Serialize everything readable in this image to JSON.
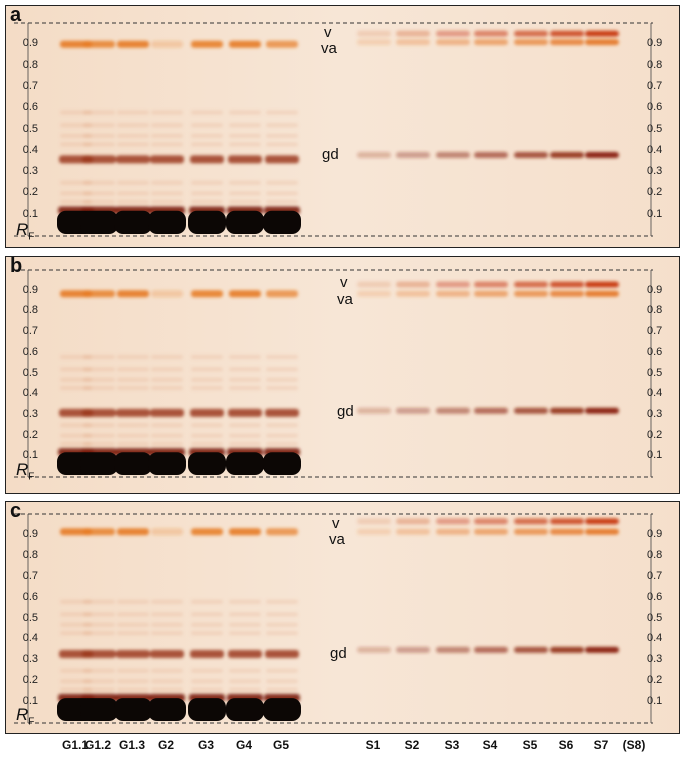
{
  "rf_ticks": [
    "0.1",
    "0.2",
    "0.3",
    "0.4",
    "0.5",
    "0.6",
    "0.7",
    "0.8",
    "0.9"
  ],
  "rf_label": {
    "main": "R",
    "sub": "F"
  },
  "panels": [
    {
      "letter": "a",
      "labels": {
        "v": "v",
        "va": "va",
        "gd": "gd"
      }
    },
    {
      "letter": "b",
      "labels": {
        "v": "v",
        "va": "va",
        "gd": "gd"
      }
    },
    {
      "letter": "c",
      "labels": {
        "v": "v",
        "va": "va",
        "gd": "gd"
      }
    }
  ],
  "lanes": [
    "G1.1",
    "G1.2",
    "G1.3",
    "G2",
    "G3",
    "G4",
    "G5",
    "S1",
    "S2",
    "S3",
    "S4",
    "S5",
    "S6",
    "S7",
    "(S8)"
  ],
  "colors": {
    "plate": "#f7e5d3",
    "band_orange": "#e8802c",
    "band_dark": "#7a1f10",
    "origin": "#0a0605"
  }
}
